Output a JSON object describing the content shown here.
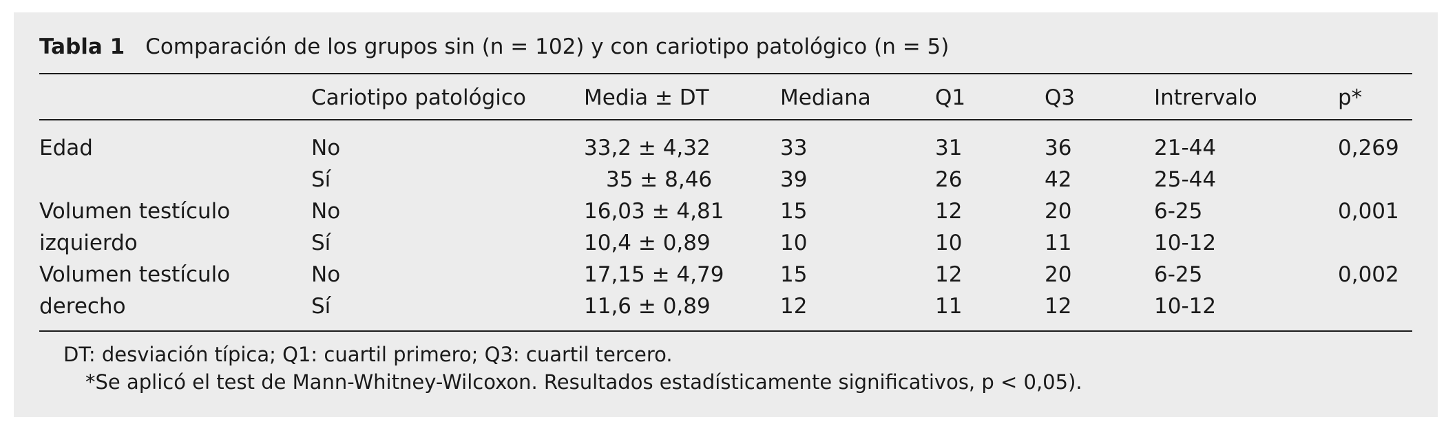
{
  "caption": {
    "label": "Tabla 1",
    "title": "Comparación de los grupos sin (n = 102) y con cariotipo patológico (n = 5)"
  },
  "header": [
    "",
    "Cariotipo patológico",
    "Media ± DT",
    "Mediana",
    "Q1",
    "Q3",
    "Intrervalo",
    "p*"
  ],
  "rows": [
    {
      "variable": "Edad",
      "cariotipo": "No",
      "media": "33,2 ± 4,32",
      "mediana": "33",
      "q1": "31",
      "q3": "36",
      "intervalo": "21-44",
      "p": "0,269"
    },
    {
      "variable": "",
      "cariotipo": "Sí",
      "media": "35 ± 8,46",
      "mediana": "39",
      "q1": "26",
      "q3": "42",
      "intervalo": "25-44",
      "p": ""
    },
    {
      "variable": "Volumen testículo",
      "cariotipo": "No",
      "media": "16,03 ± 4,81",
      "mediana": "15",
      "q1": "12",
      "q3": "20",
      "intervalo": "6-25",
      "p": "0,001"
    },
    {
      "variable": "izquierdo",
      "cariotipo": "Sí",
      "media": "10,4 ± 0,89",
      "mediana": "10",
      "q1": "10",
      "q3": "11",
      "intervalo": "10-12",
      "p": ""
    },
    {
      "variable": "Volumen testículo",
      "cariotipo": "No",
      "media": "17,15 ± 4,79",
      "mediana": "15",
      "q1": "12",
      "q3": "20",
      "intervalo": "6-25",
      "p": "0,002"
    },
    {
      "variable": "derecho",
      "cariotipo": "Sí",
      "media": "11,6 ± 0,89",
      "mediana": "12",
      "q1": "11",
      "q3": "12",
      "intervalo": "10-12",
      "p": ""
    }
  ],
  "footnotes": [
    "DT: desviación típica; Q1: cuartil primero; Q3: cuartil tercero.",
    "*Se aplicó el test de Mann-Whitney-Wilcoxon. Resultados estadísticamente significativos, p < 0,05)."
  ]
}
